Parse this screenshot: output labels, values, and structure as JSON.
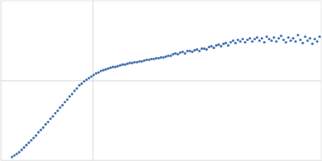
{
  "chart_data": {
    "type": "scatter",
    "marker": "circle",
    "color": "#4472b4",
    "grid": true,
    "tick_labels": false,
    "xlim": [
      0,
      0.4
    ],
    "xticks": [
      0.115
    ],
    "ylim": [
      0,
      2
    ],
    "yticks": [
      1
    ],
    "x": [
      0.014,
      0.017,
      0.02,
      0.023,
      0.026,
      0.029,
      0.032,
      0.035,
      0.038,
      0.041,
      0.044,
      0.047,
      0.05,
      0.053,
      0.056,
      0.059,
      0.062,
      0.065,
      0.068,
      0.071,
      0.074,
      0.077,
      0.08,
      0.083,
      0.086,
      0.089,
      0.092,
      0.095,
      0.098,
      0.101,
      0.104,
      0.107,
      0.11,
      0.113,
      0.116,
      0.119,
      0.122,
      0.125,
      0.128,
      0.131,
      0.134,
      0.137,
      0.14,
      0.143,
      0.146,
      0.149,
      0.152,
      0.155,
      0.158,
      0.161,
      0.164,
      0.167,
      0.17,
      0.173,
      0.176,
      0.179,
      0.182,
      0.185,
      0.188,
      0.191,
      0.194,
      0.197,
      0.2,
      0.203,
      0.206,
      0.209,
      0.212,
      0.215,
      0.218,
      0.221,
      0.224,
      0.227,
      0.23,
      0.233,
      0.236,
      0.239,
      0.242,
      0.245,
      0.248,
      0.251,
      0.254,
      0.257,
      0.26,
      0.263,
      0.266,
      0.269,
      0.272,
      0.275,
      0.278,
      0.281,
      0.284,
      0.287,
      0.29,
      0.293,
      0.296,
      0.299,
      0.302,
      0.305,
      0.308,
      0.311,
      0.314,
      0.317,
      0.32,
      0.323,
      0.326,
      0.329,
      0.332,
      0.335,
      0.338,
      0.341,
      0.344,
      0.347,
      0.35,
      0.353,
      0.356,
      0.359,
      0.362,
      0.365,
      0.368,
      0.371,
      0.374,
      0.377,
      0.38,
      0.383,
      0.386,
      0.389,
      0.392,
      0.395,
      0.398
    ],
    "values": [
      0.04,
      0.06,
      0.08,
      0.1,
      0.13,
      0.16,
      0.19,
      0.22,
      0.25,
      0.28,
      0.31,
      0.35,
      0.38,
      0.41,
      0.45,
      0.48,
      0.52,
      0.55,
      0.59,
      0.62,
      0.66,
      0.69,
      0.73,
      0.76,
      0.8,
      0.83,
      0.87,
      0.9,
      0.94,
      0.96,
      0.99,
      1.01,
      1.03,
      1.05,
      1.07,
      1.09,
      1.1,
      1.12,
      1.13,
      1.14,
      1.15,
      1.16,
      1.17,
      1.17,
      1.18,
      1.19,
      1.2,
      1.2,
      1.21,
      1.22,
      1.22,
      1.23,
      1.23,
      1.24,
      1.24,
      1.25,
      1.26,
      1.26,
      1.27,
      1.27,
      1.28,
      1.28,
      1.29,
      1.29,
      1.3,
      1.31,
      1.31,
      1.33,
      1.34,
      1.33,
      1.35,
      1.36,
      1.34,
      1.37,
      1.37,
      1.36,
      1.38,
      1.39,
      1.37,
      1.4,
      1.4,
      1.39,
      1.42,
      1.43,
      1.41,
      1.44,
      1.45,
      1.43,
      1.46,
      1.47,
      1.44,
      1.48,
      1.5,
      1.47,
      1.51,
      1.49,
      1.52,
      1.48,
      1.51,
      1.53,
      1.49,
      1.52,
      1.54,
      1.5,
      1.53,
      1.48,
      1.55,
      1.52,
      1.5,
      1.54,
      1.49,
      1.53,
      1.56,
      1.51,
      1.48,
      1.54,
      1.5,
      1.53,
      1.49,
      1.57,
      1.51,
      1.47,
      1.55,
      1.5,
      1.53,
      1.46,
      1.52,
      1.49,
      1.55
    ]
  }
}
